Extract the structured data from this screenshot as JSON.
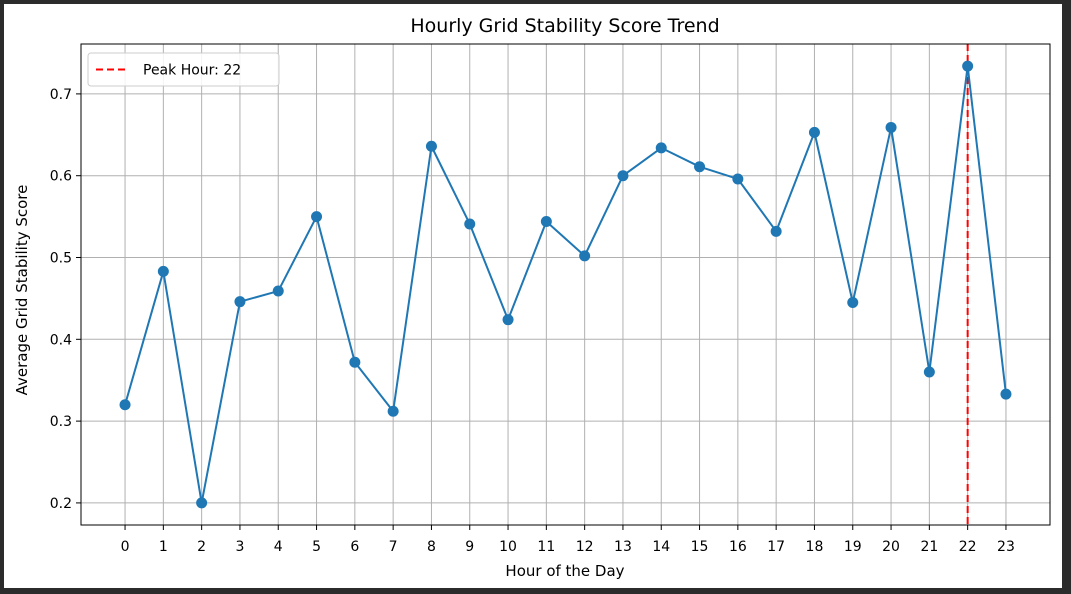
{
  "chart_data": {
    "type": "line",
    "title": "Hourly Grid Stability Score Trend",
    "xlabel": "Hour of the Day",
    "ylabel": "Average Grid Stability Score",
    "x": [
      0,
      1,
      2,
      3,
      4,
      5,
      6,
      7,
      8,
      9,
      10,
      11,
      12,
      13,
      14,
      15,
      16,
      17,
      18,
      19,
      20,
      21,
      22,
      23
    ],
    "x_tick_labels": [
      "0",
      "1",
      "2",
      "3",
      "4",
      "5",
      "6",
      "7",
      "8",
      "9",
      "10",
      "11",
      "12",
      "13",
      "14",
      "15",
      "16",
      "17",
      "18",
      "19",
      "20",
      "21",
      "22",
      "23"
    ],
    "series": [
      {
        "values": [
          0.32,
          0.483,
          0.2,
          0.446,
          0.459,
          0.55,
          0.372,
          0.312,
          0.636,
          0.541,
          0.424,
          0.544,
          0.502,
          0.6,
          0.634,
          0.611,
          0.596,
          0.532,
          0.653,
          0.445,
          0.659,
          0.36,
          0.734,
          0.333
        ],
        "color": "#1f77b4",
        "marker": "circle"
      }
    ],
    "reference_line": {
      "orientation": "vertical",
      "x": 22,
      "color": "#ff0000",
      "style": "dashed",
      "label": "Peak Hour: 22"
    },
    "y_ticks": [
      0.2,
      0.3,
      0.4,
      0.5,
      0.6,
      0.7
    ],
    "y_tick_labels": [
      "0.2",
      "0.3",
      "0.4",
      "0.5",
      "0.6",
      "0.7"
    ],
    "xlim": [
      -1.15,
      24.15
    ],
    "ylim": [
      0.173,
      0.761
    ],
    "grid": true,
    "legend_position": "top-left"
  }
}
